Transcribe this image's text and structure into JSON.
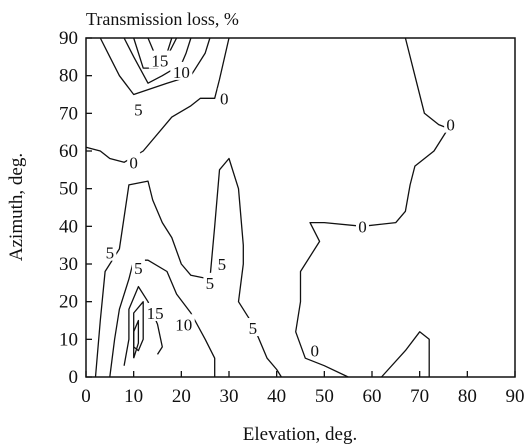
{
  "chart_data": {
    "type": "contour",
    "title": "Transmission loss, %",
    "xlabel": "Elevation, deg.",
    "ylabel": "Azimuth, deg.",
    "xlim": [
      0,
      90
    ],
    "ylim": [
      0,
      90
    ],
    "xticks": [
      "0",
      "10",
      "20",
      "30",
      "40",
      "50",
      "60",
      "70",
      "80",
      "90"
    ],
    "yticks": [
      "0",
      "10",
      "20",
      "30",
      "40",
      "50",
      "60",
      "70",
      "80",
      "90"
    ],
    "contours": [
      {
        "level": "0",
        "points": [
          [
            0,
            61
          ],
          [
            3,
            60
          ],
          [
            5,
            58
          ],
          [
            8,
            57
          ],
          [
            12,
            60
          ],
          [
            18,
            69
          ],
          [
            22,
            72
          ],
          [
            24,
            74
          ],
          [
            27,
            74
          ],
          [
            28,
            79
          ],
          [
            30,
            90
          ]
        ]
      },
      {
        "level": "5",
        "points": [
          [
            3,
            90
          ],
          [
            5,
            85
          ],
          [
            7,
            80
          ],
          [
            10,
            75
          ],
          [
            17,
            78
          ],
          [
            22,
            80
          ],
          [
            25,
            86
          ],
          [
            26,
            90
          ]
        ]
      },
      {
        "level": "10",
        "points": [
          [
            8,
            90
          ],
          [
            10,
            85
          ],
          [
            13,
            78
          ],
          [
            16,
            80
          ],
          [
            20,
            83
          ],
          [
            21,
            86
          ],
          [
            22,
            90
          ]
        ]
      },
      {
        "level": "15",
        "points": [
          [
            10,
            90
          ],
          [
            12,
            82
          ],
          [
            15,
            82
          ],
          [
            17,
            85
          ],
          [
            19,
            90
          ]
        ]
      },
      {
        "level": "",
        "points": [
          [
            13,
            90
          ],
          [
            15,
            84
          ],
          [
            17,
            86
          ],
          [
            18,
            90
          ]
        ]
      },
      {
        "level": "0",
        "points": [
          [
            67,
            90
          ],
          [
            69,
            80
          ],
          [
            71,
            70
          ],
          [
            74,
            67
          ],
          [
            76,
            66
          ],
          [
            73,
            60
          ],
          [
            69,
            56
          ],
          [
            68,
            51
          ],
          [
            67,
            44
          ],
          [
            65,
            41
          ],
          [
            58,
            40
          ],
          [
            50,
            41
          ],
          [
            47,
            41
          ],
          [
            49,
            36
          ],
          [
            45,
            28
          ],
          [
            45,
            20
          ],
          [
            44,
            12
          ],
          [
            46,
            5
          ],
          [
            50,
            3
          ],
          [
            55,
            0
          ]
        ]
      },
      {
        "level": "0",
        "points": [
          [
            62,
            0
          ],
          [
            67,
            7
          ],
          [
            70,
            12
          ],
          [
            72,
            10
          ],
          [
            72,
            0
          ]
        ]
      },
      {
        "level": "5",
        "points": [
          [
            2,
            0
          ],
          [
            3,
            15
          ],
          [
            4,
            28
          ],
          [
            7,
            34
          ],
          [
            9,
            51
          ],
          [
            13,
            52
          ],
          [
            14,
            47
          ],
          [
            16,
            41
          ],
          [
            18,
            37
          ],
          [
            20,
            30
          ],
          [
            22,
            27
          ],
          [
            26,
            26
          ],
          [
            27,
            40
          ],
          [
            28,
            55
          ],
          [
            30,
            58
          ],
          [
            32,
            50
          ],
          [
            33,
            35
          ],
          [
            33,
            30
          ],
          [
            32,
            20
          ],
          [
            35,
            14
          ],
          [
            38,
            5
          ],
          [
            40,
            2
          ],
          [
            41,
            0
          ]
        ]
      },
      {
        "level": "10",
        "points": [
          [
            5,
            0
          ],
          [
            6,
            10
          ],
          [
            7,
            18
          ],
          [
            9,
            26
          ],
          [
            10,
            31
          ],
          [
            13,
            31
          ],
          [
            17,
            28
          ],
          [
            19,
            22
          ],
          [
            22,
            17
          ],
          [
            25,
            10
          ],
          [
            27,
            5
          ],
          [
            27,
            0
          ]
        ]
      },
      {
        "level": "15",
        "points": [
          [
            8,
            3
          ],
          [
            9,
            10
          ],
          [
            9,
            18
          ],
          [
            11,
            24
          ],
          [
            13,
            20
          ],
          [
            15,
            14
          ],
          [
            16,
            8
          ],
          [
            15,
            6
          ]
        ]
      },
      {
        "level": "",
        "points": [
          [
            10,
            8
          ],
          [
            10,
            17
          ],
          [
            12,
            20
          ],
          [
            12,
            10
          ],
          [
            11,
            7
          ],
          [
            10,
            8
          ]
        ]
      },
      {
        "level": "",
        "points": [
          [
            10,
            5
          ],
          [
            10,
            12
          ],
          [
            11,
            15
          ],
          [
            11,
            9
          ],
          [
            10,
            5
          ]
        ]
      }
    ],
    "labels": [
      {
        "text": "15",
        "x": 15.5,
        "y": 84
      },
      {
        "text": "10",
        "x": 20,
        "y": 81
      },
      {
        "text": "5",
        "x": 11,
        "y": 71
      },
      {
        "text": "0",
        "x": 29,
        "y": 74
      },
      {
        "text": "0",
        "x": 10,
        "y": 57
      },
      {
        "text": "0",
        "x": 76.5,
        "y": 67
      },
      {
        "text": "0",
        "x": 58,
        "y": 40
      },
      {
        "text": "5",
        "x": 5,
        "y": 33
      },
      {
        "text": "5",
        "x": 11,
        "y": 29
      },
      {
        "text": "5",
        "x": 28.5,
        "y": 30
      },
      {
        "text": "5",
        "x": 26,
        "y": 25
      },
      {
        "text": "15",
        "x": 14.5,
        "y": 17
      },
      {
        "text": "10",
        "x": 20.5,
        "y": 14
      },
      {
        "text": "5",
        "x": 35,
        "y": 13
      },
      {
        "text": "0",
        "x": 48,
        "y": 7
      }
    ]
  }
}
